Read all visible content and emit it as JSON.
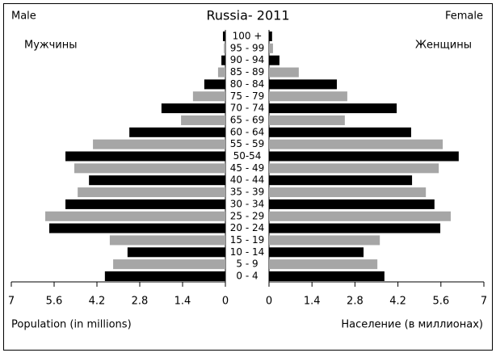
{
  "chart_data": {
    "type": "pyramid",
    "title": "Russia- 2011",
    "left_label": "Male",
    "right_label": "Female",
    "left_xlabel": "Population (in millions)",
    "right_xlabel": "Население (в миллионах)",
    "categories": [
      "100 +",
      "95 - 99",
      "90 - 94",
      "85 - 89",
      "80 - 84",
      "75 - 79",
      "70 - 74",
      "65 - 69",
      "60 - 64",
      "55 - 59",
      "50-54",
      "45 - 49",
      "40 - 44",
      "35 - 39",
      "30 - 34",
      "25 - 29",
      "20 - 24",
      "15 - 19",
      "10 - 14",
      "5 - 9",
      "0 - 4"
    ],
    "bar_colors": [
      "#000000",
      "#a6a6a6",
      "#000000",
      "#a6a6a6",
      "#000000",
      "#a6a6a6",
      "#000000",
      "#a6a6a6",
      "#000000",
      "#a6a6a6",
      "#000000",
      "#a6a6a6",
      "#000000",
      "#a6a6a6",
      "#000000",
      "#a6a6a6",
      "#000000",
      "#a6a6a6",
      "#000000",
      "#a6a6a6",
      "#000000"
    ],
    "series": [
      {
        "name": "Мужчины",
        "values": [
          0.08,
          0.05,
          0.13,
          0.24,
          0.69,
          1.06,
          2.09,
          1.45,
          3.14,
          4.33,
          5.23,
          4.94,
          4.46,
          4.83,
          5.23,
          5.89,
          5.76,
          3.78,
          3.2,
          3.67,
          3.94
        ]
      },
      {
        "name": "Женщины",
        "values": [
          0.1,
          0.13,
          0.34,
          0.97,
          2.21,
          2.55,
          4.16,
          2.47,
          4.63,
          5.66,
          6.18,
          5.53,
          4.66,
          5.11,
          5.39,
          5.92,
          5.58,
          3.61,
          3.08,
          3.53,
          3.76
        ]
      }
    ],
    "xlim": [
      0,
      7
    ],
    "xticks": [
      0,
      1.4,
      2.8,
      4.2,
      5.6,
      7
    ]
  }
}
